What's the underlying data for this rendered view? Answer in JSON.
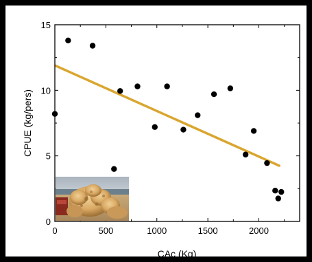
{
  "chart_data": {
    "type": "scatter",
    "title": "",
    "xlabel": "CAc (Kg)",
    "ylabel": "CPUE (kg/pers)",
    "xlim": [
      0,
      2400
    ],
    "ylim": [
      0,
      15
    ],
    "x_ticks": [
      "0",
      "500",
      "1000",
      "1500",
      "2000"
    ],
    "y_ticks": [
      "0",
      "5",
      "10",
      "15"
    ],
    "grid": false,
    "series": [
      {
        "points": [
          {
            "x": 0,
            "y": 8.2
          },
          {
            "x": 130,
            "y": 13.8
          },
          {
            "x": 370,
            "y": 13.4
          },
          {
            "x": 580,
            "y": 4.0
          },
          {
            "x": 640,
            "y": 9.95
          },
          {
            "x": 810,
            "y": 10.3
          },
          {
            "x": 980,
            "y": 7.2
          },
          {
            "x": 1100,
            "y": 10.3
          },
          {
            "x": 1260,
            "y": 7.0
          },
          {
            "x": 1400,
            "y": 8.1
          },
          {
            "x": 1560,
            "y": 9.7
          },
          {
            "x": 1720,
            "y": 10.15
          },
          {
            "x": 1870,
            "y": 5.1
          },
          {
            "x": 1950,
            "y": 6.9
          },
          {
            "x": 2080,
            "y": 4.45
          },
          {
            "x": 2160,
            "y": 2.35
          },
          {
            "x": 2190,
            "y": 1.75
          },
          {
            "x": 2220,
            "y": 2.25
          }
        ]
      }
    ],
    "trendline": {
      "x": [
        0,
        2200
      ],
      "y": [
        11.9,
        4.25
      ],
      "color": "#d9a630"
    },
    "marker_color": "#000000",
    "inset": "photo-of-sponges"
  }
}
